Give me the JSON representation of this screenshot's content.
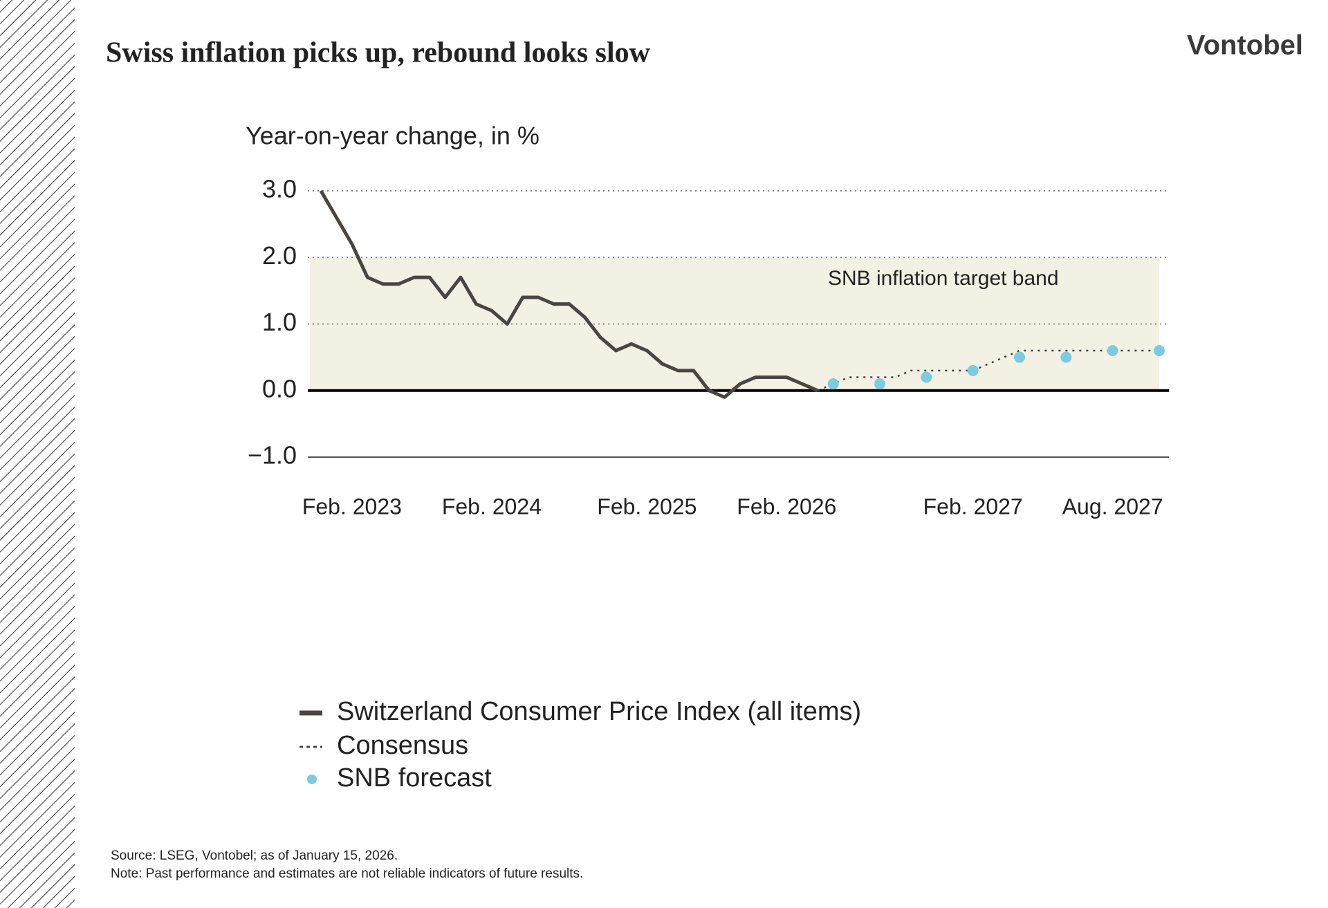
{
  "header": {
    "logo": "Vontobel"
  },
  "chart_data": {
    "type": "line",
    "title": "Swiss inflation picks up, rebound looks slow",
    "y_label": "Year-on-year change, in %",
    "categories": [
      null,
      null,
      "Feb. 2023",
      null,
      null,
      null,
      null,
      null,
      null,
      null,
      null,
      "Feb. 2024",
      null,
      null,
      null,
      null,
      null,
      null,
      null,
      null,
      null,
      "Feb. 2025",
      null,
      null,
      null,
      null,
      null,
      null,
      null,
      null,
      "Feb. 2026",
      null,
      null,
      null,
      null,
      null,
      null,
      null,
      null,
      null,
      null,
      null,
      "Feb. 2027",
      null,
      null,
      null,
      null,
      null,
      null,
      null,
      null,
      "Aug. 2027",
      null,
      null,
      null
    ],
    "series": [
      {
        "name": "Switzerland Consumer Price Index (all items)",
        "color": "#4a4540",
        "style": "solid",
        "values": [
          3.0,
          2.6,
          2.2,
          1.7,
          1.6,
          1.6,
          1.7,
          1.7,
          1.4,
          1.7,
          1.3,
          1.2,
          1.0,
          1.4,
          1.4,
          1.3,
          1.3,
          1.1,
          0.8,
          0.6,
          0.7,
          0.6,
          0.4,
          0.3,
          0.3,
          0.0,
          -0.1,
          0.1,
          0.2,
          0.2,
          0.2,
          0.1,
          0.0,
          null,
          null,
          null,
          null,
          null,
          null,
          null,
          null,
          null,
          null,
          null,
          null,
          null,
          null,
          null,
          null,
          null,
          null,
          null,
          null,
          null,
          null
        ]
      },
      {
        "name": "Consensus",
        "color": "#444444",
        "style": "dotted",
        "values": [
          null,
          null,
          null,
          null,
          null,
          null,
          null,
          null,
          null,
          null,
          null,
          null,
          null,
          null,
          null,
          null,
          null,
          null,
          null,
          null,
          null,
          null,
          null,
          null,
          null,
          null,
          null,
          null,
          null,
          null,
          null,
          null,
          0.0,
          0.1,
          0.2,
          0.2,
          0.2,
          0.2,
          0.3,
          0.3,
          0.3,
          0.3,
          0.3,
          0.4,
          0.5,
          0.6,
          0.6,
          0.6,
          0.6,
          0.6,
          0.6,
          0.6,
          0.6,
          0.6,
          0.6
        ]
      },
      {
        "name": "SNB forecast",
        "color": "#7ccbe2",
        "style": "markers",
        "values": [
          null,
          null,
          null,
          null,
          null,
          null,
          null,
          null,
          null,
          null,
          null,
          null,
          null,
          null,
          null,
          null,
          null,
          null,
          null,
          null,
          null,
          null,
          null,
          null,
          null,
          null,
          null,
          null,
          null,
          null,
          null,
          null,
          null,
          0.1,
          null,
          null,
          0.1,
          null,
          null,
          0.2,
          null,
          null,
          0.3,
          null,
          null,
          0.5,
          null,
          null,
          0.5,
          null,
          null,
          0.6,
          null,
          null,
          0.6
        ]
      }
    ],
    "band": {
      "label": "SNB inflation target band",
      "range": [
        0,
        2
      ],
      "color": "#f3f0e4"
    },
    "ylim": [
      -1,
      3
    ],
    "yticks": [
      {
        "value": -1,
        "label": "−1.0"
      },
      {
        "value": 0,
        "label": "0.0"
      },
      {
        "value": 1,
        "label": "1.0"
      },
      {
        "value": 2,
        "label": "2.0"
      },
      {
        "value": 3,
        "label": "3.0"
      }
    ],
    "grid": true
  },
  "footer": {
    "source": "Source: LSEG, Vontobel; as of January 15, 2026.",
    "note": "Note: Past performance and estimates are not reliable indicators of future results."
  }
}
